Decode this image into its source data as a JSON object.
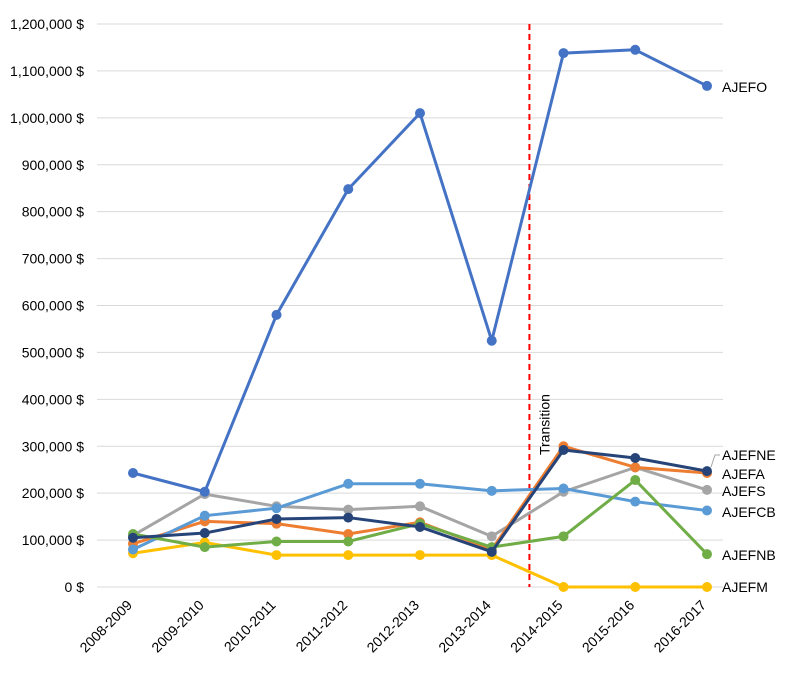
{
  "chart_data": {
    "type": "line",
    "categories": [
      "2008-2009",
      "2009-2010",
      "2010-2011",
      "2011-2012",
      "2012-2013",
      "2013-2014",
      "2014-2015",
      "2015-2016",
      "2016-2017"
    ],
    "ylim": [
      0,
      1200000
    ],
    "yticks": [
      0,
      100000,
      200000,
      300000,
      400000,
      500000,
      600000,
      700000,
      800000,
      900000,
      1000000,
      1100000,
      1200000
    ],
    "ytick_labels": [
      "0 $",
      "100,000 $",
      "200,000 $",
      "300,000 $",
      "400,000 $",
      "500,000 $",
      "600,000 $",
      "700,000 $",
      "800,000 $",
      "900,000 $",
      "1,000,000 $",
      "1,100,000 $",
      "1,200,000 $"
    ],
    "grid": true,
    "legend": "end-of-line labels",
    "annotation": {
      "text": "Transition",
      "between": [
        "2013-2014",
        "2014-2015"
      ],
      "style": "red dashed vertical line"
    },
    "series": [
      {
        "name": "AJEFO",
        "color": "#4472C4",
        "values": [
          243000,
          203000,
          580000,
          848000,
          1010000,
          525000,
          1138000,
          1145000,
          1068000
        ]
      },
      {
        "name": "AJEFA",
        "color": "#ED7D31",
        "values": [
          92000,
          140000,
          135000,
          113000,
          138000,
          80000,
          300000,
          255000,
          243000
        ]
      },
      {
        "name": "AJEFS",
        "color": "#A5A5A5",
        "values": [
          110000,
          198000,
          172000,
          165000,
          172000,
          108000,
          203000,
          255000,
          207000
        ]
      },
      {
        "name": "AJEFM",
        "color": "#FFC000",
        "values": [
          72000,
          95000,
          68000,
          68000,
          68000,
          68000,
          0,
          0,
          0
        ]
      },
      {
        "name": "AJEFCB",
        "color": "#5B9BD5",
        "values": [
          80000,
          152000,
          168000,
          220000,
          220000,
          205000,
          210000,
          182000,
          163000
        ]
      },
      {
        "name": "AJEFNB",
        "color": "#70AD47",
        "values": [
          113000,
          85000,
          97000,
          97000,
          135000,
          85000,
          108000,
          228000,
          70000
        ]
      },
      {
        "name": "AJEFNE",
        "color": "#264478",
        "values": [
          105000,
          115000,
          145000,
          148000,
          128000,
          75000,
          292000,
          275000,
          247000
        ]
      }
    ]
  }
}
